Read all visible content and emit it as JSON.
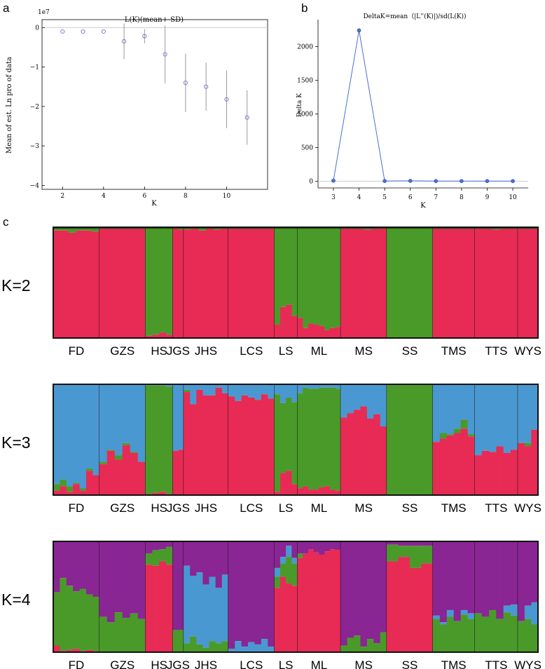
{
  "colors": {
    "red": "#E72B55",
    "green": "#4A9A2A",
    "blue": "#4A98D1",
    "purple": "#8A2594",
    "dark": "#1d4d10",
    "pointA": "#7070d0",
    "lineB": "#4a6fd0",
    "errbar": "#999999"
  },
  "chart_data": [
    {
      "panel_letter": "a",
      "type": "scatter",
      "title": "L(K)(mean+-SD)",
      "xlabel": "K",
      "ylabel": "Mean of est. Ln pro of data",
      "y_exponent_label": "1e7",
      "xlim": [
        1,
        12
      ],
      "ylim": [
        -4.1,
        0.2
      ],
      "x_ticks": [
        2,
        4,
        6,
        8,
        10
      ],
      "y_ticks": [
        0,
        -1,
        -2,
        -3,
        -4
      ],
      "x_tick_labels": [
        "2",
        "4",
        "6",
        "8",
        "10"
      ],
      "y_tick_labels": [
        "0",
        "−1",
        "−2",
        "−3",
        "−4"
      ],
      "x": [
        2,
        3,
        4,
        5,
        6,
        7,
        8,
        9,
        10,
        11
      ],
      "mean": [
        -0.1,
        -0.1,
        -0.1,
        -0.35,
        -0.22,
        -0.68,
        -1.4,
        -1.5,
        -1.82,
        -2.28
      ],
      "sd": [
        0.0,
        0.0,
        0.0,
        0.45,
        0.18,
        0.73,
        0.74,
        0.61,
        0.73,
        0.69
      ]
    },
    {
      "panel_letter": "b",
      "type": "line",
      "title": "DeltaK=mean（|L''(K)|)/sd(L(K))",
      "xlabel": "K",
      "ylabel": "Delta K",
      "xlim": [
        2.4,
        10.6
      ],
      "ylim": [
        -100,
        2400
      ],
      "x_ticks": [
        3,
        4,
        5,
        6,
        7,
        8,
        9,
        10
      ],
      "y_ticks": [
        0,
        500,
        1000,
        1500,
        2000
      ],
      "x_tick_labels": [
        "3",
        "4",
        "5",
        "6",
        "7",
        "8",
        "9",
        "10"
      ],
      "y_tick_labels": [
        "0",
        "500",
        "1000",
        "1500",
        "2000"
      ],
      "x": [
        3,
        4,
        5,
        6,
        7,
        8,
        9,
        10
      ],
      "y": [
        8,
        2240,
        3,
        5,
        2,
        2,
        2,
        2
      ]
    },
    {
      "panel_letter": "c",
      "type": "bar",
      "stacked": true,
      "populations": [
        "FD",
        "GZS",
        "HS",
        "JGS",
        "JHS",
        "LCS",
        "LS",
        "ML",
        "MS",
        "SS",
        "TMS",
        "TTS",
        "WYS"
      ],
      "population_widths": [
        64,
        64,
        38,
        15,
        62,
        64,
        32,
        60,
        64,
        64,
        58,
        60,
        28
      ],
      "rows": [
        {
          "label": "K=2",
          "order": [
            "green",
            "red"
          ],
          "components": [
            "red",
            "green"
          ],
          "populations": [
            {
              "values": [
                [
                  0.97,
                  0.97,
                  0.95,
                  0.97,
                  0.97,
                  0.96
                ]
              ]
            },
            {
              "values": [
                [
                  0.99,
                  0.99,
                  0.99,
                  0.99,
                  0.99,
                  0.99
                ]
              ]
            },
            {
              "values": [
                [
                  0.02,
                  0.03,
                  0.05,
                  0.03
                ]
              ]
            },
            {
              "values": [
                [
                  0.99,
                  0.98
                ]
              ]
            },
            {
              "values": [
                [
                  0.98,
                  0.99,
                  0.97,
                  0.99,
                  0.98,
                  0.99
                ]
              ]
            },
            {
              "values": [
                [
                  0.99,
                  0.99,
                  0.99,
                  0.99,
                  0.99,
                  0.99
                ]
              ]
            },
            {
              "values": [
                [
                  0.12,
                  0.28,
                  0.3,
                  0.2
                ]
              ]
            },
            {
              "values": [
                [
                  0.18,
                  0.09,
                  0.13,
                  0.12,
                  0.11,
                  0.07,
                  0.09,
                  0.1
                ]
              ]
            },
            {
              "values": [
                [
                  0.99,
                  0.99,
                  0.99,
                  0.98,
                  0.99,
                  0.99
                ]
              ]
            },
            {
              "values": [
                [
                  0.0,
                  0.0,
                  0.0,
                  0.0
                ]
              ]
            },
            {
              "values": [
                [
                  0.99,
                  0.99,
                  0.99,
                  0.99,
                  0.99
                ]
              ]
            },
            {
              "values": [
                [
                  0.99,
                  0.99,
                  0.98,
                  0.99,
                  0.99
                ]
              ]
            },
            {
              "values": [
                [
                  0.99,
                  0.99,
                  0.99
                ]
              ]
            }
          ]
        },
        {
          "label": "K=3",
          "order": [
            "blue",
            "green",
            "red"
          ],
          "components": [
            "red",
            "green",
            "blue"
          ],
          "populations": [
            {
              "values": [
                [
                  0.04,
                  0.08,
                  0.03,
                  0.1,
                  0.04,
                  0.22,
                  0.18
                ],
                [
                  0.06,
                  0.06,
                  0.05,
                  0.01,
                  0.02,
                  0.02,
                  0.0
                ]
              ]
            },
            {
              "values": [
                [
                  0.28,
                  0.4,
                  0.32,
                  0.45,
                  0.38,
                  0.3
                ],
                [
                  0.02,
                  0.01,
                  0.04,
                  0.02,
                  0.01,
                  0.0
                ]
              ]
            },
            {
              "values": [
                [
                  0.01,
                  0.02,
                  0.03,
                  0.01
                ],
                [
                  0.98,
                  0.97,
                  0.96,
                  0.97
                ]
              ]
            },
            {
              "values": [
                [
                  0.4,
                  0.41
                ],
                [
                  0.0,
                  0.0
                ]
              ]
            },
            {
              "values": [
                [
                  0.93,
                  0.82,
                  0.95,
                  0.9,
                  0.9,
                  0.97,
                  0.92
                ],
                [
                  0.02,
                  0.0,
                  0.0,
                  0.0,
                  0.0,
                  0.0,
                  0.0
                ]
              ]
            },
            {
              "values": [
                [
                  0.89,
                  0.85,
                  0.9,
                  0.88,
                  0.86,
                  0.91,
                  0.87
                ],
                [
                  0.0,
                  0.0,
                  0.0,
                  0.0,
                  0.0,
                  0.0,
                  0.0
                ]
              ]
            },
            {
              "values": [
                [
                  0.03,
                  0.2,
                  0.22,
                  0.1
                ],
                [
                  0.88,
                  0.63,
                  0.66,
                  0.74
                ]
              ]
            },
            {
              "values": [
                [
                  0.06,
                  0.08,
                  0.05,
                  0.05,
                  0.07,
                  0.08,
                  0.05,
                  0.04
                ],
                [
                  0.86,
                  0.89,
                  0.91,
                  0.91,
                  0.9,
                  0.89,
                  0.92,
                  0.92
                ]
              ]
            },
            {
              "values": [
                [
                  0.7,
                  0.74,
                  0.77,
                  0.8,
                  0.69,
                  0.73,
                  0.62
                ],
                [
                  0.0,
                  0.0,
                  0.0,
                  0.0,
                  0.0,
                  0.0,
                  0.0
                ]
              ]
            },
            {
              "values": [
                [
                  0.0,
                  0.0,
                  0.0,
                  0.0
                ],
                [
                  1.0,
                  1.0,
                  1.0,
                  1.0
                ]
              ]
            },
            {
              "values": [
                [
                  0.48,
                  0.51,
                  0.54,
                  0.56,
                  0.6,
                  0.53
                ],
                [
                  0.0,
                  0.05,
                  0.01,
                  0.04,
                  0.08,
                  0.02
                ]
              ]
            },
            {
              "values": [
                [
                  0.36,
                  0.4,
                  0.39,
                  0.44,
                  0.38,
                  0.41
                ],
                [
                  0.0,
                  0.0,
                  0.0,
                  0.0,
                  0.0,
                  0.0
                ]
              ]
            },
            {
              "values": [
                [
                  0.47,
                  0.44,
                  0.59
                ],
                [
                  0.0,
                  0.03,
                  0.0
                ]
              ]
            }
          ]
        },
        {
          "label": "K=4",
          "order": [
            "purple",
            "blue",
            "green",
            "red"
          ],
          "components": [
            "red",
            "green",
            "blue",
            "purple"
          ],
          "populations": [
            {
              "values": [
                [
                  0.06,
                  0.01,
                  0.02,
                  0.03,
                  0.01,
                  0.02,
                  0.01
                ],
                [
                  0.48,
                  0.66,
                  0.58,
                  0.52,
                  0.56,
                  0.5,
                  0.49
                ],
                [
                  0.0,
                  0.0,
                  0.0,
                  0.0,
                  0.0,
                  0.0,
                  0.0
                ]
              ]
            },
            {
              "values": [
                [
                  0.0,
                  0.0,
                  0.0,
                  0.0,
                  0.0,
                  0.0
                ],
                [
                  0.32,
                  0.27,
                  0.36,
                  0.31,
                  0.35,
                  0.3
                ],
                [
                  0.0,
                  0.0,
                  0.0,
                  0.0,
                  0.0,
                  0.0
                ]
              ]
            },
            {
              "values": [
                [
                  0.79,
                  0.78,
                  0.82,
                  0.79
                ],
                [
                  0.1,
                  0.14,
                  0.11,
                  0.16
                ],
                [
                  0.0,
                  0.0,
                  0.0,
                  0.0
                ]
              ]
            },
            {
              "values": [
                [
                  0.0,
                  0.0
                ],
                [
                  0.2,
                  0.2
                ],
                [
                  0.0,
                  0.0
                ]
              ]
            },
            {
              "values": [
                [
                  0.0,
                  0.0,
                  0.0,
                  0.0,
                  0.0,
                  0.0,
                  0.0
                ],
                [
                  0.08,
                  0.14,
                  0.07,
                  0.04,
                  0.1,
                  0.08,
                  0.1
                ],
                [
                  0.7,
                  0.55,
                  0.65,
                  0.57,
                  0.58,
                  0.5,
                  0.6
                ]
              ]
            },
            {
              "values": [
                [
                  0.0,
                  0.0,
                  0.0,
                  0.0,
                  0.0,
                  0.0,
                  0.0
                ],
                [
                  0.0,
                  0.0,
                  0.0,
                  0.0,
                  0.0,
                  0.0,
                  0.0
                ],
                [
                  0.03,
                  0.1,
                  0.05,
                  0.09,
                  0.07,
                  0.12,
                  0.05
                ]
              ]
            },
            {
              "values": [
                [
                  0.58,
                  0.68,
                  0.62,
                  0.6
                ],
                [
                  0.1,
                  0.12,
                  0.24,
                  0.2
                ],
                [
                  0.08,
                  0.06,
                  0.1,
                  0.05
                ]
              ]
            },
            {
              "values": [
                [
                  0.85,
                  0.89,
                  0.93,
                  0.9,
                  0.88,
                  0.91,
                  0.93,
                  0.92
                ],
                [
                  0.04,
                  0.0,
                  0.0,
                  0.0,
                  0.0,
                  0.0,
                  0.0,
                  0.0
                ],
                [
                  0.0,
                  0.0,
                  0.0,
                  0.0,
                  0.0,
                  0.0,
                  0.0,
                  0.0
                ]
              ]
            },
            {
              "values": [
                [
                  0.0,
                  0.0,
                  0.0,
                  0.0,
                  0.0,
                  0.0,
                  0.0
                ],
                [
                  0.06,
                  0.13,
                  0.15,
                  0.05,
                  0.12,
                  0.08,
                  0.18
                ],
                [
                  0.0,
                  0.0,
                  0.0,
                  0.0,
                  0.0,
                  0.0,
                  0.0
                ]
              ]
            },
            {
              "values": [
                [
                  0.82,
                  0.86,
                  0.76,
                  0.8
                ],
                [
                  0.15,
                  0.1,
                  0.2,
                  0.16
                ],
                [
                  0.0,
                  0.0,
                  0.0,
                  0.0
                ]
              ]
            },
            {
              "values": [
                [
                  0.0,
                  0.0,
                  0.0,
                  0.0,
                  0.0,
                  0.0
                ],
                [
                  0.3,
                  0.25,
                  0.32,
                  0.28,
                  0.34,
                  0.3
                ],
                [
                  0.03,
                  0.02,
                  0.06,
                  0.0,
                  0.04,
                  0.05
                ]
              ]
            },
            {
              "values": [
                [
                  0.0,
                  0.0,
                  0.0,
                  0.0,
                  0.0,
                  0.0
                ],
                [
                  0.35,
                  0.32,
                  0.38,
                  0.3,
                  0.36,
                  0.33
                ],
                [
                  0.0,
                  0.0,
                  0.0,
                  0.0,
                  0.06,
                  0.1
                ]
              ]
            },
            {
              "values": [
                [
                  0.0,
                  0.0,
                  0.0
                ],
                [
                  0.28,
                  0.3,
                  0.25
                ],
                [
                  0.0,
                  0.12,
                  0.2
                ]
              ]
            }
          ]
        }
      ]
    }
  ]
}
